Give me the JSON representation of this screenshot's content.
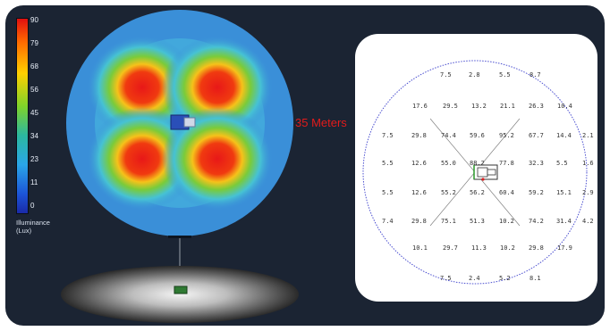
{
  "legend": {
    "ticks": [
      "90",
      "79",
      "68",
      "56",
      "45",
      "34",
      "23",
      "11",
      "0"
    ],
    "title_line1": "Illuminance",
    "title_line2": "(Lux)"
  },
  "distance_label": "35 Meters",
  "colors": {
    "frame": "#1b2433",
    "disc_base": "#3a8fd8",
    "hot": "#e81818",
    "label": "#e21b1b",
    "circle": "#4b4fd0"
  },
  "grid_rows": [
    [
      "7.5",
      "2.8",
      "5.5",
      "8.7"
    ],
    [
      "17.6",
      "29.5",
      "13.2",
      "21.1",
      "26.3",
      "10.4"
    ],
    [
      "7.5",
      "29.8",
      "74.4",
      "59.6",
      "95.2",
      "67.7",
      "14.4",
      "2.1"
    ],
    [
      "5.5",
      "12.6",
      "55.0",
      "88.2",
      "77.8",
      "32.3",
      "5.5",
      "1.6"
    ],
    [
      "5.5",
      "12.6",
      "55.2",
      "56.2",
      "60.4",
      "59.2",
      "15.1",
      "2.9"
    ],
    [
      "7.4",
      "29.8",
      "75.1",
      "51.3",
      "10.2",
      "74.2",
      "31.4",
      "4.2"
    ],
    [
      "10.1",
      "29.7",
      "11.3",
      "10.2",
      "29.8",
      "17.9"
    ],
    [
      "7.5",
      "2.4",
      "5.2",
      "8.1"
    ]
  ]
}
